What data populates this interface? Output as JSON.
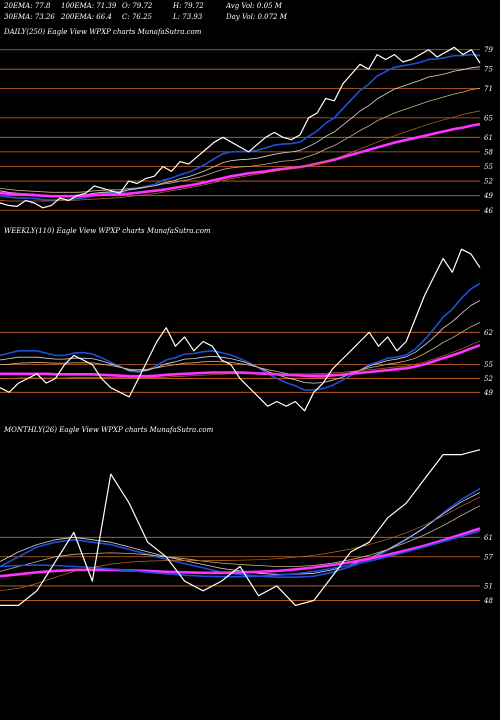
{
  "header": {
    "row1": [
      {
        "label": "20EMA:",
        "value": "77.8"
      },
      {
        "label": "100EMA:",
        "value": "71.39"
      },
      {
        "label": "O:",
        "value": "79.72"
      },
      {
        "label": "H:",
        "value": "79.72"
      },
      {
        "label": "Avg Vol:",
        "value": "0.05 M"
      }
    ],
    "row2": [
      {
        "label": "30EMA:",
        "value": "73.26"
      },
      {
        "label": "200EMA:",
        "value": "66.4"
      },
      {
        "label": "C:",
        "value": "76.25"
      },
      {
        "label": "L:",
        "value": "73.93"
      },
      {
        "label": "Day Vol:",
        "value": "0.072  M"
      }
    ]
  },
  "colors": {
    "background": "#000000",
    "price": "#ffffff",
    "ema_fast": "#1e4fd8",
    "ema_mid": "#d9d9d9",
    "ema_slow": "#c8b48a",
    "ema_long": "#ff33ff",
    "ema_other": "#b86a2a",
    "gridline": "#d2691e"
  },
  "chart_data": [
    {
      "type": "line",
      "title": "DAILY(250) Eagle  View  WPXP charts MunafaSutra.com",
      "ylim": [
        44,
        81
      ],
      "yticks": [
        79,
        75,
        71,
        65,
        61,
        58,
        55,
        52,
        49,
        46
      ],
      "series": [
        {
          "role": "price",
          "values": [
            47.5,
            47,
            46.8,
            48,
            47.5,
            46.5,
            47,
            48.5,
            48,
            49,
            49.5,
            51,
            50.5,
            50,
            49.5,
            52,
            51.5,
            52.5,
            53,
            55,
            54,
            56,
            55.5,
            57,
            58.5,
            60,
            61,
            60,
            59,
            58,
            59.5,
            61,
            62,
            61,
            60.5,
            61.5,
            65,
            66,
            69,
            68.5,
            72,
            74,
            76,
            75,
            78,
            77,
            78,
            76.5,
            77,
            78,
            79,
            77.5,
            78.5,
            79.5,
            78,
            79,
            76.25
          ]
        },
        {
          "role": "ema_fast",
          "values": [
            49,
            48.7,
            48.5,
            48.5,
            48.4,
            48.2,
            48.1,
            48.2,
            48.2,
            48.4,
            48.6,
            49.1,
            49.4,
            49.6,
            49.6,
            50.2,
            50.5,
            50.9,
            51.3,
            52.2,
            52.6,
            53.3,
            53.8,
            54.6,
            55.5,
            56.6,
            57.6,
            58,
            58.1,
            58.1,
            58.3,
            58.8,
            59.4,
            59.6,
            59.7,
            60,
            61.2,
            62.3,
            63.9,
            65,
            66.9,
            68.8,
            70.6,
            71.9,
            73.6,
            74.5,
            75.4,
            75.7,
            76,
            76.4,
            77,
            77.1,
            77.4,
            77.8,
            77.8,
            78,
            77.8
          ]
        },
        {
          "role": "ema_mid",
          "values": [
            50,
            49.7,
            49.5,
            49.4,
            49.3,
            49.1,
            49,
            49,
            49,
            49.1,
            49.2,
            49.5,
            49.7,
            49.8,
            49.8,
            50.2,
            50.4,
            50.7,
            51,
            51.6,
            51.9,
            52.5,
            52.9,
            53.5,
            54.2,
            55,
            55.8,
            56.2,
            56.4,
            56.5,
            56.7,
            57.1,
            57.5,
            57.8,
            58,
            58.3,
            59.1,
            60,
            61.2,
            62.1,
            63.5,
            64.9,
            66.4,
            67.5,
            68.9,
            69.9,
            70.9,
            71.5,
            72.1,
            72.7,
            73.4,
            73.7,
            74.1,
            74.6,
            74.9,
            75.3,
            75.5
          ]
        },
        {
          "role": "ema_slow",
          "values": [
            50.5,
            50.3,
            50.1,
            50,
            49.9,
            49.8,
            49.7,
            49.7,
            49.7,
            49.7,
            49.8,
            50,
            50.1,
            50.2,
            50.2,
            50.5,
            50.6,
            50.8,
            51,
            51.4,
            51.6,
            52,
            52.3,
            52.7,
            53.2,
            53.8,
            54.4,
            54.7,
            54.9,
            55,
            55.2,
            55.5,
            55.8,
            56.1,
            56.2,
            56.5,
            57.1,
            57.7,
            58.6,
            59.3,
            60.3,
            61.3,
            62.4,
            63.3,
            64.4,
            65.2,
            66,
            66.6,
            67.2,
            67.8,
            68.4,
            68.9,
            69.4,
            69.9,
            70.3,
            70.8,
            71.1
          ]
        },
        {
          "role": "ema_long",
          "values": [
            49.5,
            49.4,
            49.3,
            49.2,
            49.1,
            49,
            48.9,
            48.9,
            48.9,
            48.9,
            49,
            49.1,
            49.2,
            49.2,
            49.3,
            49.4,
            49.6,
            49.8,
            50,
            50.2,
            50.5,
            50.8,
            51.1,
            51.4,
            51.8,
            52.2,
            52.6,
            53,
            53.3,
            53.6,
            53.8,
            54,
            54.3,
            54.5,
            54.7,
            54.9,
            55.2,
            55.6,
            56,
            56.4,
            56.9,
            57.4,
            57.9,
            58.4,
            58.9,
            59.4,
            59.9,
            60.3,
            60.7,
            61.1,
            61.5,
            61.9,
            62.3,
            62.7,
            63,
            63.4,
            63.7
          ]
        },
        {
          "role": "ema_other",
          "values": [
            48,
            47.9,
            47.9,
            47.9,
            47.9,
            47.9,
            47.9,
            48,
            48,
            48.1,
            48.2,
            48.3,
            48.4,
            48.5,
            48.6,
            48.8,
            49,
            49.2,
            49.4,
            49.7,
            50,
            50.3,
            50.6,
            50.9,
            51.3,
            51.7,
            52.1,
            52.5,
            52.8,
            53.1,
            53.4,
            53.7,
            54,
            54.3,
            54.5,
            54.8,
            55.2,
            55.6,
            56.1,
            56.6,
            57.2,
            57.9,
            58.6,
            59.3,
            60,
            60.7,
            61.3,
            61.9,
            62.5,
            63.1,
            63.7,
            64.2,
            64.7,
            65.2,
            65.7,
            66.1,
            66.4
          ]
        }
      ]
    },
    {
      "type": "line",
      "title": "WEEKLY(110) Eagle  View  WPXP charts MunafaSutra.com",
      "ylim": [
        43,
        82
      ],
      "yticks": [
        62,
        55,
        52,
        49
      ],
      "series": [
        {
          "role": "price",
          "values": [
            50,
            49,
            51,
            52,
            53,
            51,
            52,
            55,
            57,
            56,
            55,
            52,
            50,
            49,
            48,
            52,
            56,
            60,
            63,
            59,
            61,
            58,
            60,
            59,
            56,
            55,
            52,
            50,
            48,
            46,
            47,
            46,
            47,
            45,
            49,
            51,
            54,
            56,
            58,
            60,
            62,
            59,
            61,
            58,
            60,
            65,
            70,
            74,
            78,
            75,
            80,
            79,
            76
          ]
        },
        {
          "role": "ema_fast",
          "values": [
            57,
            57.5,
            58,
            58,
            58,
            57.5,
            57,
            57,
            57.5,
            57.6,
            57.3,
            56.5,
            55.5,
            54.6,
            53.6,
            53.4,
            53.8,
            54.8,
            56,
            56.5,
            57.3,
            57.4,
            57.8,
            58,
            57.6,
            57.1,
            56.3,
            55.4,
            54.3,
            53,
            52,
            51.1,
            50.4,
            49.5,
            49.5,
            49.8,
            50.5,
            51.5,
            52.6,
            53.7,
            55,
            55.6,
            56.4,
            56.6,
            57.1,
            58.4,
            60.4,
            62.7,
            65.3,
            67,
            69.4,
            71.4,
            72.6
          ]
        },
        {
          "role": "ema_mid",
          "values": [
            56,
            56.3,
            56.6,
            56.6,
            56.6,
            56.4,
            56.2,
            56.2,
            56.4,
            56.4,
            56.3,
            55.8,
            55.2,
            54.5,
            53.8,
            53.6,
            53.8,
            54.4,
            55.2,
            55.6,
            56.2,
            56.3,
            56.6,
            56.8,
            56.6,
            56.3,
            55.8,
            55.2,
            54.4,
            53.5,
            52.8,
            52.2,
            51.7,
            51.1,
            51,
            51.1,
            51.6,
            52.2,
            53,
            53.8,
            54.7,
            55.3,
            55.9,
            56.2,
            56.7,
            57.7,
            59.2,
            60.9,
            62.9,
            64.3,
            66.1,
            67.8,
            68.9
          ]
        },
        {
          "role": "ema_slow",
          "values": [
            55,
            55.1,
            55.3,
            55.4,
            55.5,
            55.4,
            55.3,
            55.3,
            55.4,
            55.4,
            55.4,
            55.1,
            54.8,
            54.4,
            54,
            53.9,
            54,
            54.3,
            54.7,
            55,
            55.3,
            55.4,
            55.6,
            55.7,
            55.6,
            55.5,
            55.2,
            54.9,
            54.4,
            53.9,
            53.5,
            53.1,
            52.8,
            52.4,
            52.3,
            52.3,
            52.5,
            52.8,
            53.3,
            53.8,
            54.3,
            54.7,
            55.1,
            55.4,
            55.8,
            56.4,
            57.4,
            58.5,
            59.8,
            60.8,
            62,
            63.2,
            64.1
          ]
        },
        {
          "role": "ema_long",
          "values": [
            53,
            53,
            53,
            53,
            53,
            53,
            52.9,
            52.9,
            52.9,
            52.9,
            52.9,
            52.8,
            52.7,
            52.6,
            52.5,
            52.5,
            52.5,
            52.6,
            52.8,
            52.9,
            53,
            53.1,
            53.2,
            53.3,
            53.3,
            53.3,
            53.3,
            53.2,
            53.1,
            53,
            52.9,
            52.8,
            52.7,
            52.6,
            52.6,
            52.6,
            52.7,
            52.8,
            53,
            53.2,
            53.4,
            53.6,
            53.8,
            54,
            54.2,
            54.6,
            55.1,
            55.7,
            56.4,
            57,
            57.7,
            58.5,
            59.2
          ]
        },
        {
          "role": "ema_other",
          "values": [
            52,
            52,
            52.1,
            52.1,
            52.1,
            52.1,
            52.1,
            52.1,
            52.2,
            52.2,
            52.2,
            52.2,
            52.2,
            52.2,
            52.1,
            52.1,
            52.1,
            52.2,
            52.3,
            52.4,
            52.5,
            52.6,
            52.7,
            52.8,
            52.9,
            53,
            53,
            53,
            53,
            53,
            53,
            53,
            53,
            53,
            53,
            53.1,
            53.2,
            53.3,
            53.5,
            53.7,
            53.9,
            54.1,
            54.3,
            54.5,
            54.7,
            55.1,
            55.6,
            56.2,
            56.9,
            57.6,
            58.4,
            59.3,
            60.1
          ]
        }
      ]
    },
    {
      "type": "line",
      "title": "MONTHLY(26) Eagle  View  WPXP charts MunafaSutra.com",
      "ylim": [
        44,
        81
      ],
      "yticks": [
        61,
        57,
        51,
        48
      ],
      "series": [
        {
          "role": "price",
          "values": [
            47,
            47,
            50,
            56,
            62,
            52,
            74,
            68,
            60,
            57,
            52,
            50,
            52,
            55,
            49,
            51,
            47,
            48,
            53,
            58,
            60,
            65,
            68,
            73,
            78,
            78,
            79
          ]
        },
        {
          "role": "ema_fast",
          "values": [
            55,
            57,
            59,
            60,
            60.5,
            60,
            59.5,
            58.5,
            57.5,
            56.5,
            55.6,
            54.7,
            53.8,
            53.4,
            53,
            52.8,
            52.8,
            53,
            53.8,
            55,
            56.4,
            58.3,
            60.5,
            63,
            66,
            68.8,
            71
          ]
        },
        {
          "role": "ema_mid",
          "values": [
            56,
            58,
            59.5,
            60.5,
            61,
            60.5,
            60,
            59,
            58,
            57,
            56.2,
            55.4,
            54.6,
            54.1,
            53.6,
            53.4,
            53.4,
            53.6,
            54.3,
            55.4,
            56.7,
            58.5,
            60.6,
            63,
            65.8,
            68.3,
            70.2
          ]
        },
        {
          "role": "ema_slow",
          "values": [
            54,
            55,
            56,
            57,
            57.5,
            57.7,
            57.8,
            57.7,
            57.4,
            57,
            56.6,
            56.1,
            55.7,
            55.4,
            55.2,
            55,
            55,
            55.2,
            55.7,
            56.4,
            57.3,
            58.5,
            59.9,
            61.5,
            63.4,
            65.5,
            67.5
          ]
        },
        {
          "role": "ema_long",
          "values": [
            53,
            53.4,
            53.8,
            54.1,
            54.3,
            54.3,
            54.3,
            54.2,
            54.1,
            53.9,
            53.8,
            53.7,
            53.7,
            53.8,
            53.9,
            54.1,
            54.4,
            54.8,
            55.3,
            55.9,
            56.6,
            57.4,
            58.3,
            59.3,
            60.4,
            61.6,
            62.8
          ]
        },
        {
          "role": "ema_blue",
          "values": [
            55,
            55.2,
            55.3,
            55.2,
            55,
            54.8,
            54.5,
            54.2,
            53.8,
            53.5,
            53.2,
            53,
            52.9,
            52.9,
            53,
            53.2,
            53.5,
            54,
            54.6,
            55.3,
            56.1,
            57,
            58,
            59,
            60.1,
            61.2,
            62.3
          ]
        },
        {
          "role": "ema_other",
          "values": [
            50,
            50.5,
            51.5,
            52.8,
            54,
            54.8,
            55.5,
            55.9,
            56.1,
            56.2,
            56.2,
            56.2,
            56.2,
            56.3,
            56.4,
            56.6,
            56.9,
            57.3,
            57.9,
            58.6,
            59.5,
            60.6,
            61.9,
            63.5,
            65.4,
            67.4,
            69.3
          ]
        }
      ]
    }
  ]
}
